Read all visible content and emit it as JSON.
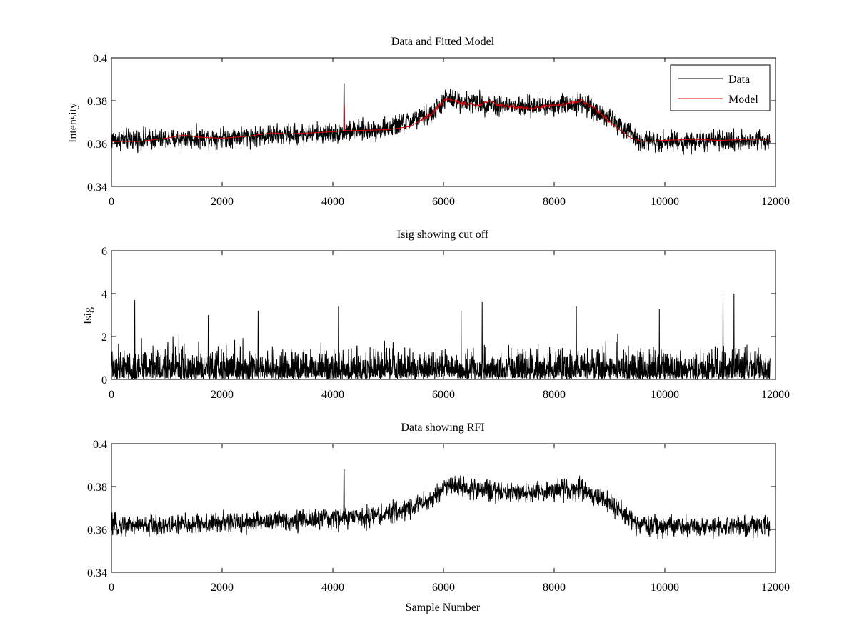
{
  "chart_data": [
    {
      "type": "line",
      "title": "Data and Fitted Model",
      "xlabel": "",
      "ylabel": "Intensity",
      "xlim": [
        0,
        12000
      ],
      "ylim": [
        0.34,
        0.4
      ],
      "xticks": [
        0,
        2000,
        4000,
        6000,
        8000,
        10000,
        12000
      ],
      "xtick_labels": [
        "0",
        "2000",
        "4000",
        "6000",
        "8000",
        "10000",
        "12000"
      ],
      "yticks": [
        0.34,
        0.36,
        0.38,
        0.4
      ],
      "ytick_labels": [
        "0.34",
        "0.36",
        "0.38",
        "0.4"
      ],
      "legend": {
        "placement": "top-right",
        "entries": [
          "Data",
          "Model"
        ]
      },
      "series": [
        {
          "name": "Data",
          "color": "#000000",
          "noise_amplitude": 0.0045,
          "baseline_x": [
            0,
            1000,
            2000,
            3000,
            4000,
            5000,
            5800,
            6050,
            6500,
            7000,
            7500,
            8000,
            8500,
            9000,
            9500,
            10000,
            11000,
            11900
          ],
          "baseline_y": [
            0.362,
            0.362,
            0.363,
            0.364,
            0.365,
            0.367,
            0.374,
            0.381,
            0.379,
            0.378,
            0.377,
            0.378,
            0.379,
            0.372,
            0.362,
            0.361,
            0.361,
            0.362
          ],
          "spike": {
            "x": 4200,
            "y": 0.388
          }
        },
        {
          "name": "Model",
          "color": "#e00000",
          "x": [
            0,
            500,
            1000,
            1300,
            1600,
            2000,
            2500,
            2900,
            3200,
            3600,
            4000,
            4200,
            4600,
            5000,
            5400,
            5800,
            6050,
            6300,
            6600,
            6850,
            7000,
            7300,
            7600,
            8000,
            8250,
            8500,
            8800,
            9100,
            9400,
            9600,
            10000,
            10500,
            11000,
            11500,
            11900
          ],
          "y": [
            0.361,
            0.361,
            0.3625,
            0.364,
            0.363,
            0.3625,
            0.3635,
            0.365,
            0.3645,
            0.365,
            0.3655,
            0.366,
            0.3662,
            0.3665,
            0.368,
            0.374,
            0.381,
            0.379,
            0.378,
            0.38,
            0.378,
            0.377,
            0.3765,
            0.378,
            0.3785,
            0.38,
            0.375,
            0.368,
            0.3625,
            0.361,
            0.3615,
            0.362,
            0.3615,
            0.362,
            0.362
          ],
          "spike": {
            "x": 4210,
            "y": 0.378
          }
        }
      ]
    },
    {
      "type": "line",
      "title": "Isig showing cut off",
      "xlabel": "",
      "ylabel": "Isig",
      "xlim": [
        0,
        12000
      ],
      "ylim": [
        0,
        6
      ],
      "xticks": [
        0,
        2000,
        4000,
        6000,
        8000,
        10000,
        12000
      ],
      "xtick_labels": [
        "0",
        "2000",
        "4000",
        "6000",
        "8000",
        "10000",
        "12000"
      ],
      "yticks": [
        0,
        2,
        4,
        6
      ],
      "ytick_labels": [
        "0",
        "2",
        "4",
        "6"
      ],
      "series": [
        {
          "name": "Isig",
          "color": "#000000",
          "x_max": 11900,
          "typical_range": [
            0,
            2
          ],
          "peaks_x": [
            420,
            1750,
            2650,
            4100,
            6320,
            6700,
            8400,
            9900,
            11050,
            11250
          ],
          "peaks_y": [
            3.7,
            3.0,
            3.2,
            3.4,
            3.2,
            3.6,
            3.4,
            3.3,
            4.0,
            4.0
          ]
        }
      ]
    },
    {
      "type": "line",
      "title": "Data showing RFI",
      "xlabel": "Sample Number",
      "ylabel": "",
      "xlim": [
        0,
        12000
      ],
      "ylim": [
        0.34,
        0.4
      ],
      "xticks": [
        0,
        2000,
        4000,
        6000,
        8000,
        10000,
        12000
      ],
      "xtick_labels": [
        "0",
        "2000",
        "4000",
        "6000",
        "8000",
        "10000",
        "12000"
      ],
      "yticks": [
        0.34,
        0.36,
        0.38,
        0.4
      ],
      "ytick_labels": [
        "0.34",
        "0.36",
        "0.38",
        "0.4"
      ],
      "series": [
        {
          "name": "Data",
          "color": "#000000",
          "noise_amplitude": 0.0045,
          "baseline_x": [
            0,
            1000,
            2000,
            3000,
            4000,
            5000,
            5800,
            6050,
            6500,
            7000,
            7500,
            8000,
            8500,
            9000,
            9500,
            10000,
            11000,
            11900
          ],
          "baseline_y": [
            0.362,
            0.362,
            0.363,
            0.364,
            0.365,
            0.367,
            0.374,
            0.381,
            0.379,
            0.378,
            0.377,
            0.378,
            0.379,
            0.372,
            0.362,
            0.361,
            0.361,
            0.362
          ],
          "spike": {
            "x": 4200,
            "y": 0.388
          }
        }
      ]
    }
  ]
}
